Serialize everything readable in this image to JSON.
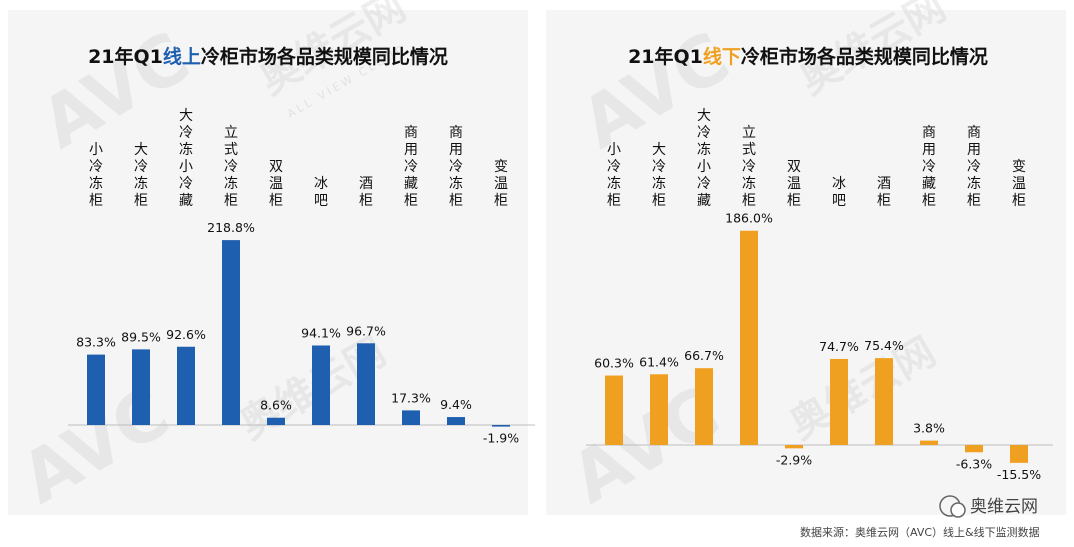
{
  "watermark": {
    "logo": "AVC",
    "brand": "奥维云网",
    "tagline": "ALL VIEW CLOUD"
  },
  "wechat": {
    "name": "奥维云网"
  },
  "source": "数据来源：奥维云网（AVC）线上&线下监测数据",
  "chart_data": [
    {
      "type": "bar",
      "title_parts": [
        {
          "text": "21年Q1",
          "color": "#111111"
        },
        {
          "text": "线上",
          "color": "#1f5fb0"
        },
        {
          "text": "冷柜市场各品类规模同比情况",
          "color": "#111111"
        }
      ],
      "bar_color": "#1f5fb0",
      "categories": [
        "小冷冻柜",
        "大冷冻柜",
        "大冷冻小冷藏",
        "立式冷冻柜",
        "双温柜",
        "冰吧",
        "酒柜",
        "商用冷藏柜",
        "商用冷冻柜",
        "变温柜"
      ],
      "values": [
        83.3,
        89.5,
        92.6,
        218.8,
        8.6,
        94.1,
        96.7,
        17.3,
        9.4,
        -1.9
      ],
      "value_labels": [
        "83.3%",
        "89.5%",
        "92.6%",
        "218.8%",
        "8.6%",
        "94.1%",
        "96.7%",
        "17.3%",
        "9.4%",
        "-1.9%"
      ]
    },
    {
      "type": "bar",
      "title_parts": [
        {
          "text": "21年Q1",
          "color": "#111111"
        },
        {
          "text": "线下",
          "color": "#f0a020"
        },
        {
          "text": "冷柜市场各品类规模同比情况",
          "color": "#111111"
        }
      ],
      "bar_color": "#f0a020",
      "categories": [
        "小冷冻柜",
        "大冷冻柜",
        "大冷冻小冷藏",
        "立式冷冻柜",
        "双温柜",
        "冰吧",
        "酒柜",
        "商用冷藏柜",
        "商用冷冻柜",
        "变温柜"
      ],
      "values": [
        60.3,
        61.4,
        66.7,
        186.0,
        -2.9,
        74.7,
        75.4,
        3.8,
        -6.3,
        -15.5
      ],
      "value_labels": [
        "60.3%",
        "61.4%",
        "66.7%",
        "186.0%",
        "-2.9%",
        "74.7%",
        "75.4%",
        "3.8%",
        "-6.3%",
        "-15.5%"
      ]
    }
  ]
}
